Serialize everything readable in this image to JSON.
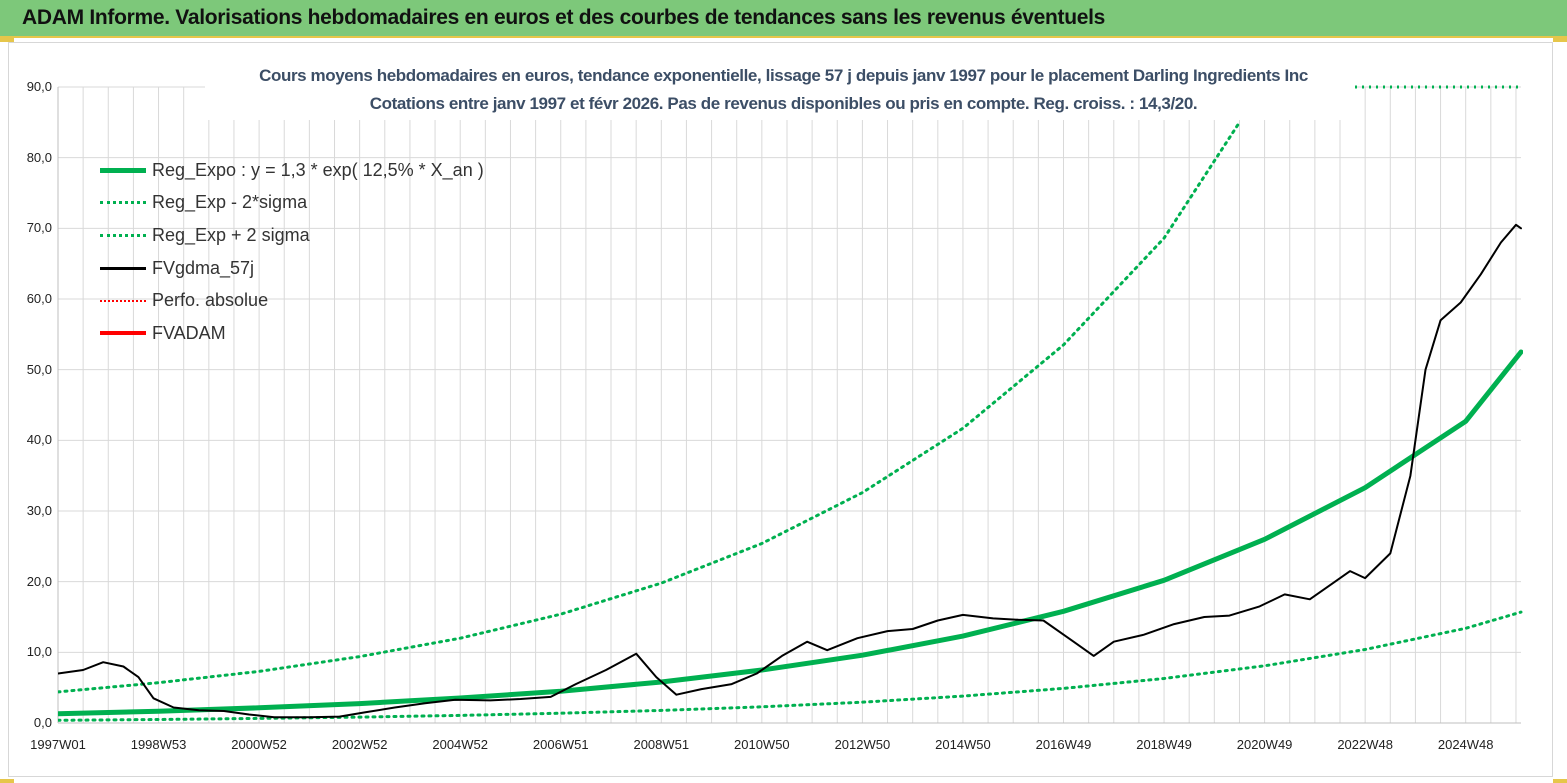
{
  "banner": {
    "title": "ADAM Informe. Valorisations hebdomadaires en euros et des courbes de tendances sans les revenus éventuels"
  },
  "colors": {
    "banner_bg": "#7dc87a",
    "trend_green": "#00b050",
    "price_red": "#ff0000",
    "smooth_black": "#000000",
    "grid": "#d9d9d9"
  },
  "chart_data": {
    "type": "line",
    "title": "Cours moyens hebdomadaires en euros, tendance exponentielle, lissage 57 j depuis janv 1997 pour le placement Darling Ingredients Inc",
    "subtitle": "Cotations entre janv 1997 et févr 2026. Pas de revenus disponibles ou pris en  compte. Reg.  croiss. : 14,3/20.",
    "xlabel": "",
    "ylabel": "",
    "ylim": [
      0,
      90
    ],
    "xlim": [
      1997.0,
      2026.1
    ],
    "grid": true,
    "legend_position": "top-left",
    "y_ticks": [
      "0,0",
      "10,0",
      "20,0",
      "30,0",
      "40,0",
      "50,0",
      "60,0",
      "70,0",
      "80,0",
      "90,0"
    ],
    "x_ticks": [
      {
        "label": "1997W01",
        "x": 1997.0
      },
      {
        "label": "1998W53",
        "x": 1999.0
      },
      {
        "label": "2000W52",
        "x": 2001.0
      },
      {
        "label": "2002W52",
        "x": 2003.0
      },
      {
        "label": "2004W52",
        "x": 2005.0
      },
      {
        "label": "2006W51",
        "x": 2007.0
      },
      {
        "label": "2008W51",
        "x": 2009.0
      },
      {
        "label": "2010W50",
        "x": 2011.0
      },
      {
        "label": "2012W50",
        "x": 2013.0
      },
      {
        "label": "2014W50",
        "x": 2015.0
      },
      {
        "label": "2016W49",
        "x": 2017.0
      },
      {
        "label": "2018W49",
        "x": 2019.0
      },
      {
        "label": "2020W49",
        "x": 2021.0
      },
      {
        "label": "2022W48",
        "x": 2023.0
      },
      {
        "label": "2024W48",
        "x": 2025.0
      }
    ],
    "series": [
      {
        "name": "Reg_Expo : y = 1,3 * exp( 12,5% *  X_an )",
        "style": "solid-thick",
        "color": "#00b050",
        "points": [
          [
            1997.0,
            1.3
          ],
          [
            1999.0,
            1.67
          ],
          [
            2001.0,
            2.15
          ],
          [
            2003.0,
            2.75
          ],
          [
            2005.0,
            3.54
          ],
          [
            2007.0,
            4.5
          ],
          [
            2009.0,
            5.8
          ],
          [
            2011.0,
            7.5
          ],
          [
            2013.0,
            9.6
          ],
          [
            2015.0,
            12.3
          ],
          [
            2017.0,
            15.8
          ],
          [
            2019.0,
            20.2
          ],
          [
            2021.0,
            26.0
          ],
          [
            2023.0,
            33.3
          ],
          [
            2025.0,
            42.7
          ],
          [
            2026.1,
            52.5
          ]
        ]
      },
      {
        "name": "Reg_Exp - 2*sigma",
        "style": "dotted",
        "color": "#00b050",
        "points": [
          [
            1997.0,
            0.38
          ],
          [
            1999.0,
            0.5
          ],
          [
            2001.0,
            0.65
          ],
          [
            2003.0,
            0.83
          ],
          [
            2005.0,
            1.07
          ],
          [
            2007.0,
            1.38
          ],
          [
            2009.0,
            1.78
          ],
          [
            2011.0,
            2.29
          ],
          [
            2013.0,
            2.95
          ],
          [
            2015.0,
            3.8
          ],
          [
            2017.0,
            4.9
          ],
          [
            2019.0,
            6.3
          ],
          [
            2021.0,
            8.1
          ],
          [
            2023.0,
            10.4
          ],
          [
            2025.0,
            13.4
          ],
          [
            2026.1,
            15.7
          ]
        ]
      },
      {
        "name": "Reg_Exp + 2 sigma",
        "style": "dotted",
        "color": "#00b050",
        "points": [
          [
            1997.0,
            4.4
          ],
          [
            1999.0,
            5.7
          ],
          [
            2001.0,
            7.3
          ],
          [
            2003.0,
            9.4
          ],
          [
            2005.0,
            12.0
          ],
          [
            2007.0,
            15.4
          ],
          [
            2009.0,
            19.8
          ],
          [
            2011.0,
            25.4
          ],
          [
            2013.0,
            32.6
          ],
          [
            2015.0,
            41.7
          ],
          [
            2017.0,
            53.5
          ],
          [
            2019.0,
            68.6
          ],
          [
            2020.5,
            85.0
          ]
        ]
      },
      {
        "name": "FVgdma_57j",
        "style": "solid-thin",
        "color": "#000000",
        "points": [
          [
            1997.0,
            7.0
          ],
          [
            1997.5,
            7.5
          ],
          [
            1997.9,
            8.6
          ],
          [
            1998.3,
            8.0
          ],
          [
            1998.6,
            6.5
          ],
          [
            1998.9,
            3.5
          ],
          [
            1999.3,
            2.2
          ],
          [
            1999.8,
            1.8
          ],
          [
            2000.3,
            1.7
          ],
          [
            2000.8,
            1.2
          ],
          [
            2001.3,
            0.8
          ],
          [
            2002.0,
            0.8
          ],
          [
            2002.6,
            0.9
          ],
          [
            2003.1,
            1.5
          ],
          [
            2003.7,
            2.2
          ],
          [
            2004.3,
            2.8
          ],
          [
            2004.9,
            3.3
          ],
          [
            2005.6,
            3.2
          ],
          [
            2006.2,
            3.4
          ],
          [
            2006.8,
            3.7
          ],
          [
            2007.3,
            5.5
          ],
          [
            2007.9,
            7.5
          ],
          [
            2008.5,
            9.8
          ],
          [
            2008.9,
            6.5
          ],
          [
            2009.3,
            4.0
          ],
          [
            2009.8,
            4.8
          ],
          [
            2010.4,
            5.5
          ],
          [
            2010.9,
            7.0
          ],
          [
            2011.4,
            9.5
          ],
          [
            2011.9,
            11.5
          ],
          [
            2012.3,
            10.3
          ],
          [
            2012.9,
            12.0
          ],
          [
            2013.5,
            13.0
          ],
          [
            2014.0,
            13.3
          ],
          [
            2014.5,
            14.5
          ],
          [
            2015.0,
            15.3
          ],
          [
            2015.6,
            14.8
          ],
          [
            2016.1,
            14.6
          ],
          [
            2016.6,
            14.5
          ],
          [
            2017.2,
            11.5
          ],
          [
            2017.6,
            9.5
          ],
          [
            2018.0,
            11.5
          ],
          [
            2018.6,
            12.5
          ],
          [
            2019.2,
            14.0
          ],
          [
            2019.8,
            15.0
          ],
          [
            2020.3,
            15.2
          ],
          [
            2020.9,
            16.5
          ],
          [
            2021.4,
            18.2
          ],
          [
            2021.9,
            17.5
          ],
          [
            2022.3,
            19.5
          ],
          [
            2022.7,
            21.5
          ],
          [
            2023.0,
            20.5
          ],
          [
            2023.5,
            24.0
          ],
          [
            2023.9,
            35.0
          ],
          [
            2024.2,
            50.0
          ],
          [
            2024.5,
            57.0
          ],
          [
            2024.9,
            59.5
          ],
          [
            2025.3,
            63.5
          ],
          [
            2025.7,
            68.0
          ],
          [
            2026.0,
            70.5
          ],
          [
            2026.1,
            70.0
          ]
        ]
      },
      {
        "name": "Perfo. absolue",
        "style": "dotted-red",
        "color": "#ff0000",
        "points": []
      },
      {
        "name": "FVADAM",
        "style": "solid-thick",
        "color": "#ff0000",
        "points": []
      }
    ]
  }
}
